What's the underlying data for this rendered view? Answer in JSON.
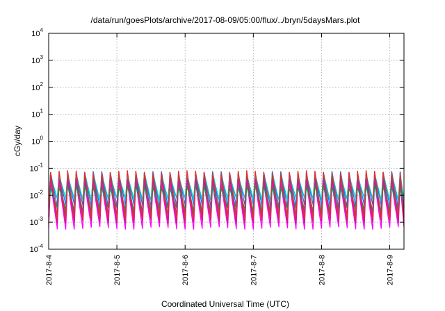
{
  "chart_data": {
    "type": "line",
    "title": "/data/run/goesPlots/archive/2017-08-09/05:00/flux/../bryn/5daysMars.plot",
    "xlabel": "Coordinated Universal Time (UTC)",
    "ylabel": "cGy/day",
    "yscale": "log",
    "ylim": [
      0.0001,
      10000
    ],
    "xlim": [
      "2017-08-04 00:00",
      "2017-08-09 05:00"
    ],
    "grid": true,
    "x_ticks": [
      "2017-8-4",
      "2017-8-5",
      "2017-8-6",
      "2017-8-7",
      "2017-8-8",
      "2017-8-9"
    ],
    "y_ticks": [
      {
        "base": "10",
        "exp": "-4"
      },
      {
        "base": "10",
        "exp": "-3"
      },
      {
        "base": "10",
        "exp": "-2"
      },
      {
        "base": "10",
        "exp": "-1"
      },
      {
        "base": "10",
        "exp": "0"
      },
      {
        "base": "10",
        "exp": "1"
      },
      {
        "base": "10",
        "exp": "2"
      },
      {
        "base": "10",
        "exp": "3"
      },
      {
        "base": "10",
        "exp": "4"
      }
    ],
    "cycle_hours": 3,
    "series": [
      {
        "color": "#ff00ff",
        "peak": 0.03,
        "trough": 0.0006
      },
      {
        "color": "#cc1a7a",
        "peak": 0.045,
        "trough": 0.001
      },
      {
        "color": "#8a2be2",
        "peak": 0.05,
        "trough": 0.002
      },
      {
        "color": "#1f6fff",
        "peak": 0.07,
        "trough": 0.004
      },
      {
        "color": "#00c8c8",
        "peak": 0.06,
        "trough": 0.007
      },
      {
        "color": "#00a050",
        "peak": 0.02,
        "trough": 0.003
      },
      {
        "color": "#e0302a",
        "peak": 0.075,
        "trough": 0.0015
      }
    ]
  }
}
